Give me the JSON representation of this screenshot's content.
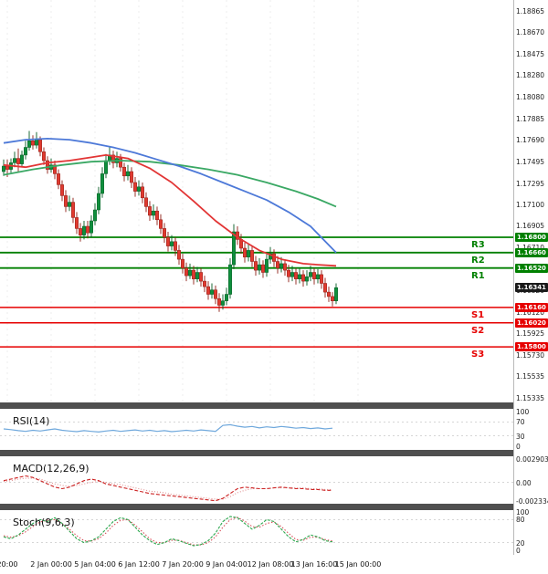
{
  "price_axis": {
    "ticks": [
      "1.18865",
      "1.18670",
      "1.18475",
      "1.18280",
      "1.18080",
      "1.17885",
      "1.17690",
      "1.17495",
      "1.17295",
      "1.17100",
      "1.16905",
      "1.16710",
      "1.16515",
      "1.16320",
      "1.16120",
      "1.15925",
      "1.15730",
      "1.15535",
      "1.15335"
    ]
  },
  "levels": {
    "resistance": [
      {
        "label": "R3",
        "price": 1.168,
        "display": "1.16800"
      },
      {
        "label": "R2",
        "price": 1.1666,
        "display": "1.16660"
      },
      {
        "label": "R1",
        "price": 1.1652,
        "display": "1.16520"
      }
    ],
    "support": [
      {
        "label": "S1",
        "price": 1.1616,
        "display": "1.16160"
      },
      {
        "label": "S2",
        "price": 1.1602,
        "display": "1.16020"
      },
      {
        "label": "S3",
        "price": 1.158,
        "display": "1.15800"
      }
    ],
    "current": {
      "price": 1.16341,
      "display": "1.16341"
    }
  },
  "panels": {
    "rsi": {
      "title": "RSI(14)",
      "axis": [
        {
          "v": 100,
          "t": "100"
        },
        {
          "v": 70,
          "t": "70"
        },
        {
          "v": 30,
          "t": "30"
        },
        {
          "v": 0,
          "t": "0"
        }
      ]
    },
    "macd": {
      "title": "MACD(12,26,9)",
      "axis": [
        {
          "v": 0.002903,
          "t": "0.002903"
        },
        {
          "v": 0,
          "t": "0.00"
        },
        {
          "v": -0.002334,
          "t": "-0.002334"
        }
      ]
    },
    "stoch": {
      "title": "Stoch(9,6,3)",
      "axis": [
        {
          "v": 100,
          "t": "100"
        },
        {
          "v": 80,
          "t": "80"
        },
        {
          "v": 20,
          "t": "20"
        },
        {
          "v": 0,
          "t": "0"
        }
      ]
    }
  },
  "time_axis": {
    "labels": [
      "20:00",
      "2 Jan 00:00",
      "5 Jan 04:00",
      "6 Jan 12:00",
      "7 Jan 20:00",
      "9 Jan 04:00",
      "12 Jan 08:00",
      "13 Jan 16:00",
      "15 Jan 00:00"
    ]
  },
  "colors": {
    "bull": "#0e8f3c",
    "bull_dark": "#065b24",
    "bear": "#e03a2f",
    "bear_dark": "#8f1d15",
    "resistance": "#008000",
    "support": "#e60000",
    "current_box": "#1a1a1a",
    "ma_blue": "#4d79d8",
    "ma_green": "#3aa864",
    "ma_red": "#e23535",
    "rsi": "#6fa8dc",
    "macd": "#cc2222",
    "macd_signal": "#e09090",
    "stoch_k": "#2da84f",
    "stoch_d": "#d8505a",
    "grid": "#ececec",
    "ref_line": "#c8c8c8"
  },
  "chart_data": {
    "type": "candlestick",
    "price_range": [
      1.15335,
      1.18865
    ],
    "grid": false,
    "time_labels": [
      "20:00",
      "2 Jan 00:00",
      "5 Jan 04:00",
      "6 Jan 12:00",
      "7 Jan 20:00",
      "9 Jan 04:00",
      "12 Jan 08:00",
      "13 Jan 16:00",
      "15 Jan 00:00"
    ],
    "levels": {
      "resistance": [
        1.168,
        1.1666,
        1.1652
      ],
      "support": [
        1.1616,
        1.1602,
        1.158
      ],
      "current": 1.16341
    },
    "candles": [
      [
        1.174,
        1.1751,
        1.1736,
        1.1745
      ],
      [
        1.1745,
        1.1751,
        1.1735,
        1.1742
      ],
      [
        1.1742,
        1.1752,
        1.1739,
        1.1748
      ],
      [
        1.1748,
        1.1758,
        1.1744,
        1.1752
      ],
      [
        1.1752,
        1.1761,
        1.174,
        1.1747
      ],
      [
        1.1747,
        1.1759,
        1.1744,
        1.1755
      ],
      [
        1.1755,
        1.1768,
        1.1751,
        1.1762
      ],
      [
        1.1762,
        1.1777,
        1.1759,
        1.1768
      ],
      [
        1.1768,
        1.1773,
        1.176,
        1.1764
      ],
      [
        1.1764,
        1.1776,
        1.1761,
        1.1769
      ],
      [
        1.1769,
        1.1772,
        1.1754,
        1.1758
      ],
      [
        1.1758,
        1.1762,
        1.1746,
        1.175
      ],
      [
        1.175,
        1.1754,
        1.1738,
        1.1742
      ],
      [
        1.1742,
        1.1752,
        1.1739,
        1.1746
      ],
      [
        1.1746,
        1.175,
        1.1733,
        1.1738
      ],
      [
        1.1738,
        1.1742,
        1.1724,
        1.1728
      ],
      [
        1.1728,
        1.1732,
        1.1713,
        1.1718
      ],
      [
        1.1718,
        1.1723,
        1.1703,
        1.1708
      ],
      [
        1.1708,
        1.1718,
        1.1704,
        1.1712
      ],
      [
        1.1712,
        1.1716,
        1.1693,
        1.1698
      ],
      [
        1.1698,
        1.1703,
        1.1683,
        1.1688
      ],
      [
        1.1688,
        1.1693,
        1.1676,
        1.1682
      ],
      [
        1.1682,
        1.1695,
        1.1678,
        1.169
      ],
      [
        1.169,
        1.1695,
        1.1679,
        1.1684
      ],
      [
        1.1684,
        1.17,
        1.168,
        1.1695
      ],
      [
        1.1695,
        1.1711,
        1.1691,
        1.1705
      ],
      [
        1.1705,
        1.1726,
        1.1701,
        1.172
      ],
      [
        1.172,
        1.1744,
        1.1716,
        1.1738
      ],
      [
        1.1738,
        1.1756,
        1.1734,
        1.175
      ],
      [
        1.175,
        1.1762,
        1.1746,
        1.1755
      ],
      [
        1.1755,
        1.1759,
        1.1743,
        1.1748
      ],
      [
        1.1748,
        1.1758,
        1.1744,
        1.1752
      ],
      [
        1.1752,
        1.1756,
        1.174,
        1.1744
      ],
      [
        1.1744,
        1.1748,
        1.1731,
        1.1736
      ],
      [
        1.1736,
        1.1746,
        1.1732,
        1.174
      ],
      [
        1.174,
        1.1744,
        1.1725,
        1.173
      ],
      [
        1.173,
        1.1735,
        1.1717,
        1.1722
      ],
      [
        1.1722,
        1.1732,
        1.1718,
        1.1726
      ],
      [
        1.1726,
        1.173,
        1.1711,
        1.1716
      ],
      [
        1.1716,
        1.1721,
        1.1703,
        1.1708
      ],
      [
        1.1708,
        1.1713,
        1.1695,
        1.17
      ],
      [
        1.17,
        1.171,
        1.1696,
        1.1704
      ],
      [
        1.1704,
        1.1708,
        1.1691,
        1.1696
      ],
      [
        1.1696,
        1.1701,
        1.1683,
        1.1688
      ],
      [
        1.1688,
        1.1693,
        1.1675,
        1.168
      ],
      [
        1.168,
        1.1685,
        1.1667,
        1.1672
      ],
      [
        1.1672,
        1.1682,
        1.1668,
        1.1676
      ],
      [
        1.1676,
        1.168,
        1.1663,
        1.1668
      ],
      [
        1.1668,
        1.1673,
        1.1655,
        1.166
      ],
      [
        1.166,
        1.1665,
        1.1647,
        1.1652
      ],
      [
        1.1652,
        1.1657,
        1.164,
        1.1645
      ],
      [
        1.1645,
        1.1656,
        1.1642,
        1.165
      ],
      [
        1.165,
        1.1654,
        1.1637,
        1.1642
      ],
      [
        1.1642,
        1.1653,
        1.1639,
        1.1648
      ],
      [
        1.1648,
        1.1652,
        1.1635,
        1.164
      ],
      [
        1.164,
        1.1645,
        1.163,
        1.1635
      ],
      [
        1.1635,
        1.164,
        1.1623,
        1.1628
      ],
      [
        1.1628,
        1.1638,
        1.1624,
        1.1632
      ],
      [
        1.1632,
        1.1636,
        1.1619,
        1.1624
      ],
      [
        1.1624,
        1.1629,
        1.1612,
        1.1618
      ],
      [
        1.1618,
        1.1628,
        1.1614,
        1.1622
      ],
      [
        1.1622,
        1.1634,
        1.1618,
        1.1628
      ],
      [
        1.1628,
        1.1661,
        1.1624,
        1.1655
      ],
      [
        1.1655,
        1.1692,
        1.1651,
        1.1685
      ],
      [
        1.1685,
        1.169,
        1.1673,
        1.1678
      ],
      [
        1.1678,
        1.1683,
        1.1665,
        1.167
      ],
      [
        1.167,
        1.1675,
        1.1657,
        1.1662
      ],
      [
        1.1662,
        1.1674,
        1.1658,
        1.1668
      ],
      [
        1.1668,
        1.1672,
        1.1653,
        1.1658
      ],
      [
        1.1658,
        1.1663,
        1.1645,
        1.165
      ],
      [
        1.165,
        1.1661,
        1.1646,
        1.1655
      ],
      [
        1.1655,
        1.1659,
        1.1643,
        1.1648
      ],
      [
        1.1648,
        1.1666,
        1.1644,
        1.166
      ],
      [
        1.166,
        1.1671,
        1.1656,
        1.1665
      ],
      [
        1.1665,
        1.1669,
        1.1653,
        1.1658
      ],
      [
        1.1658,
        1.1663,
        1.1647,
        1.1652
      ],
      [
        1.1652,
        1.1662,
        1.1648,
        1.1656
      ],
      [
        1.1656,
        1.166,
        1.1645,
        1.165
      ],
      [
        1.165,
        1.1655,
        1.1639,
        1.1644
      ],
      [
        1.1644,
        1.1654,
        1.164,
        1.1648
      ],
      [
        1.1648,
        1.1652,
        1.1637,
        1.1642
      ],
      [
        1.1642,
        1.1652,
        1.1638,
        1.1646
      ],
      [
        1.1646,
        1.165,
        1.1635,
        1.164
      ],
      [
        1.164,
        1.165,
        1.1636,
        1.1644
      ],
      [
        1.1644,
        1.1654,
        1.164,
        1.1648
      ],
      [
        1.1648,
        1.1652,
        1.1637,
        1.1642
      ],
      [
        1.1642,
        1.1651,
        1.1638,
        1.1646
      ],
      [
        1.1646,
        1.165,
        1.1633,
        1.1638
      ],
      [
        1.1638,
        1.1643,
        1.1625,
        1.163
      ],
      [
        1.163,
        1.1635,
        1.1621,
        1.1626
      ],
      [
        1.1626,
        1.163,
        1.1617,
        1.1622
      ],
      [
        1.1622,
        1.1638,
        1.1619,
        1.16341
      ]
    ],
    "overlays": {
      "ma_blue": [
        [
          0,
          1.1766
        ],
        [
          6,
          1.1769
        ],
        [
          12,
          1.177
        ],
        [
          18,
          1.1769
        ],
        [
          24,
          1.1766
        ],
        [
          30,
          1.1762
        ],
        [
          36,
          1.1757
        ],
        [
          42,
          1.1751
        ],
        [
          48,
          1.1745
        ],
        [
          54,
          1.1738
        ],
        [
          60,
          1.173
        ],
        [
          66,
          1.1722
        ],
        [
          72,
          1.1714
        ],
        [
          78,
          1.1703
        ],
        [
          84,
          1.169
        ],
        [
          91,
          1.1666
        ]
      ],
      "ma_green": [
        [
          0,
          1.1737
        ],
        [
          8,
          1.1742
        ],
        [
          16,
          1.1746
        ],
        [
          24,
          1.1749
        ],
        [
          32,
          1.175
        ],
        [
          40,
          1.1749
        ],
        [
          48,
          1.1746
        ],
        [
          56,
          1.1742
        ],
        [
          64,
          1.1737
        ],
        [
          72,
          1.173
        ],
        [
          80,
          1.1722
        ],
        [
          86,
          1.1715
        ],
        [
          91,
          1.1708
        ]
      ],
      "ma_red": [
        [
          0,
          1.1746
        ],
        [
          6,
          1.1744
        ],
        [
          12,
          1.1748
        ],
        [
          18,
          1.175
        ],
        [
          24,
          1.1753
        ],
        [
          28,
          1.1755
        ],
        [
          34,
          1.1752
        ],
        [
          40,
          1.1743
        ],
        [
          46,
          1.173
        ],
        [
          52,
          1.1713
        ],
        [
          58,
          1.1695
        ],
        [
          64,
          1.168
        ],
        [
          70,
          1.1668
        ],
        [
          76,
          1.166
        ],
        [
          82,
          1.1656
        ],
        [
          86,
          1.1655
        ],
        [
          91,
          1.1654
        ]
      ]
    },
    "indicators": {
      "rsi": {
        "params": "14",
        "range": [
          0,
          100
        ],
        "ref_lines": [
          70,
          30
        ],
        "values": [
          50,
          48,
          45,
          43,
          46,
          44,
          47,
          50,
          46,
          44,
          42,
          45,
          43,
          41,
          44,
          46,
          43,
          45,
          47,
          44,
          46,
          43,
          45,
          42,
          44,
          46,
          44,
          47,
          45,
          43,
          60,
          62,
          58,
          55,
          57,
          53,
          56,
          54,
          57,
          55,
          52,
          54,
          51,
          53,
          50,
          52
        ]
      },
      "macd": {
        "params": "12,26,9",
        "range": [
          -0.002334,
          0.002903
        ],
        "macd": [
          0.0002,
          0.0004,
          0.0006,
          0.0008,
          0.0006,
          0.0002,
          -0.0002,
          -0.0006,
          -0.0008,
          -0.0006,
          -0.0002,
          0.0002,
          0.0004,
          0.0002,
          -0.0002,
          -0.0004,
          -0.0006,
          -0.0008,
          -0.001,
          -0.0012,
          -0.0014,
          -0.0015,
          -0.0016,
          -0.0017,
          -0.0018,
          -0.0019,
          -0.002,
          -0.0021,
          -0.0022,
          -0.0023,
          -0.002,
          -0.0014,
          -0.0008,
          -0.0006,
          -0.0007,
          -0.0008,
          -0.0008,
          -0.0007,
          -0.0006,
          -0.0007,
          -0.0008,
          -0.0008,
          -0.0009,
          -0.0009,
          -0.001,
          -0.001
        ],
        "signal": [
          0.0001,
          0.0002,
          0.0004,
          0.0005,
          0.0005,
          0.0004,
          0.0001,
          -0.0002,
          -0.0004,
          -0.0005,
          -0.0004,
          -0.0002,
          0.0,
          0.0001,
          0.0,
          -0.0002,
          -0.0003,
          -0.0005,
          -0.0007,
          -0.0009,
          -0.0011,
          -0.0012,
          -0.0013,
          -0.0015,
          -0.0016,
          -0.0017,
          -0.0018,
          -0.0019,
          -0.002,
          -0.0021,
          -0.0021,
          -0.0018,
          -0.0013,
          -0.001,
          -0.0008,
          -0.0008,
          -0.0008,
          -0.0007,
          -0.0007,
          -0.0007,
          -0.0007,
          -0.0007,
          -0.0008,
          -0.0008,
          -0.0009,
          -0.0009
        ]
      },
      "stoch": {
        "params": "9,6,3",
        "range": [
          0,
          100
        ],
        "ref_lines": [
          80,
          20
        ],
        "k": [
          35,
          30,
          40,
          55,
          70,
          80,
          75,
          85,
          70,
          50,
          30,
          20,
          25,
          35,
          55,
          75,
          85,
          80,
          60,
          40,
          25,
          15,
          20,
          30,
          25,
          18,
          12,
          15,
          25,
          45,
          75,
          88,
          85,
          70,
          55,
          65,
          80,
          75,
          55,
          35,
          22,
          28,
          40,
          35,
          25,
          22
        ],
        "d": [
          38,
          34,
          38,
          48,
          62,
          74,
          78,
          80,
          70,
          55,
          38,
          25,
          24,
          30,
          45,
          65,
          78,
          80,
          66,
          48,
          30,
          20,
          20,
          26,
          26,
          20,
          14,
          14,
          20,
          35,
          60,
          80,
          86,
          76,
          62,
          60,
          70,
          74,
          62,
          44,
          28,
          26,
          34,
          34,
          28,
          24
        ]
      }
    }
  }
}
